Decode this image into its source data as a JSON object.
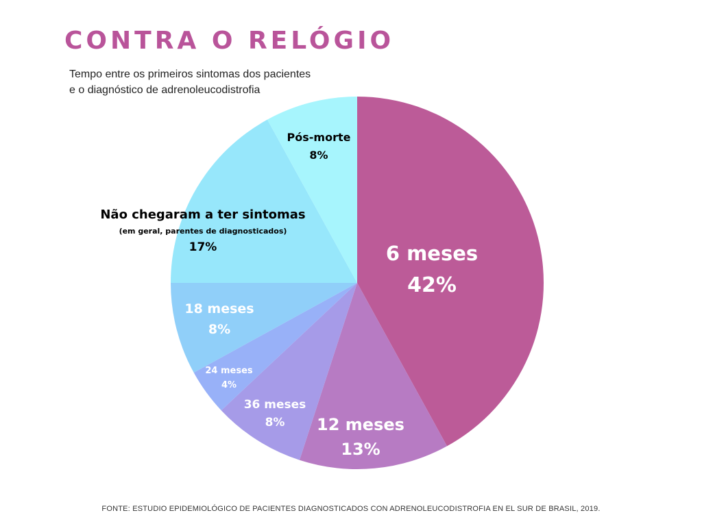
{
  "header": {
    "title": "CONTRA O RELÓGIO",
    "subtitle_line1": "Tempo entre os primeiros sintomas dos pacientes",
    "subtitle_line2": "e o diagnóstico de adrenoleucodistrofia"
  },
  "chart_data": {
    "type": "pie",
    "start_angle": "12 o'clock",
    "direction": "clockwise",
    "slices": [
      {
        "label": "6 meses",
        "value": 42,
        "value_label": "42%",
        "color": "#bc5b98",
        "text_color": "#ffffff"
      },
      {
        "label": "12 meses",
        "value": 13,
        "value_label": "13%",
        "color": "#b77bc3",
        "text_color": "#ffffff"
      },
      {
        "label": "36 meses",
        "value": 8,
        "value_label": "8%",
        "color": "#a69be8",
        "text_color": "#ffffff"
      },
      {
        "label": "24 meses",
        "value": 4,
        "value_label": "4%",
        "color": "#98b1f8",
        "text_color": "#ffffff"
      },
      {
        "label": "18 meses",
        "value": 8,
        "value_label": "8%",
        "color": "#90cff9",
        "text_color": "#ffffff"
      },
      {
        "label": "Não chegaram a ter sintomas",
        "sublabel": "(em geral, parentes de diagnosticados)",
        "value": 17,
        "value_label": "17%",
        "color": "#97e7fb",
        "text_color": "#000000"
      },
      {
        "label": "Pós-morte",
        "value": 8,
        "value_label": "8%",
        "color": "#a7f5fd",
        "text_color": "#000000"
      }
    ]
  },
  "footer": {
    "source": "FONTE: ESTUDIO EPIDEMIOLÓGICO DE PACIENTES DIAGNOSTICADOS CON ADRENOLEUCODISTROFIA EN EL SUR DE BRASIL, 2019."
  }
}
